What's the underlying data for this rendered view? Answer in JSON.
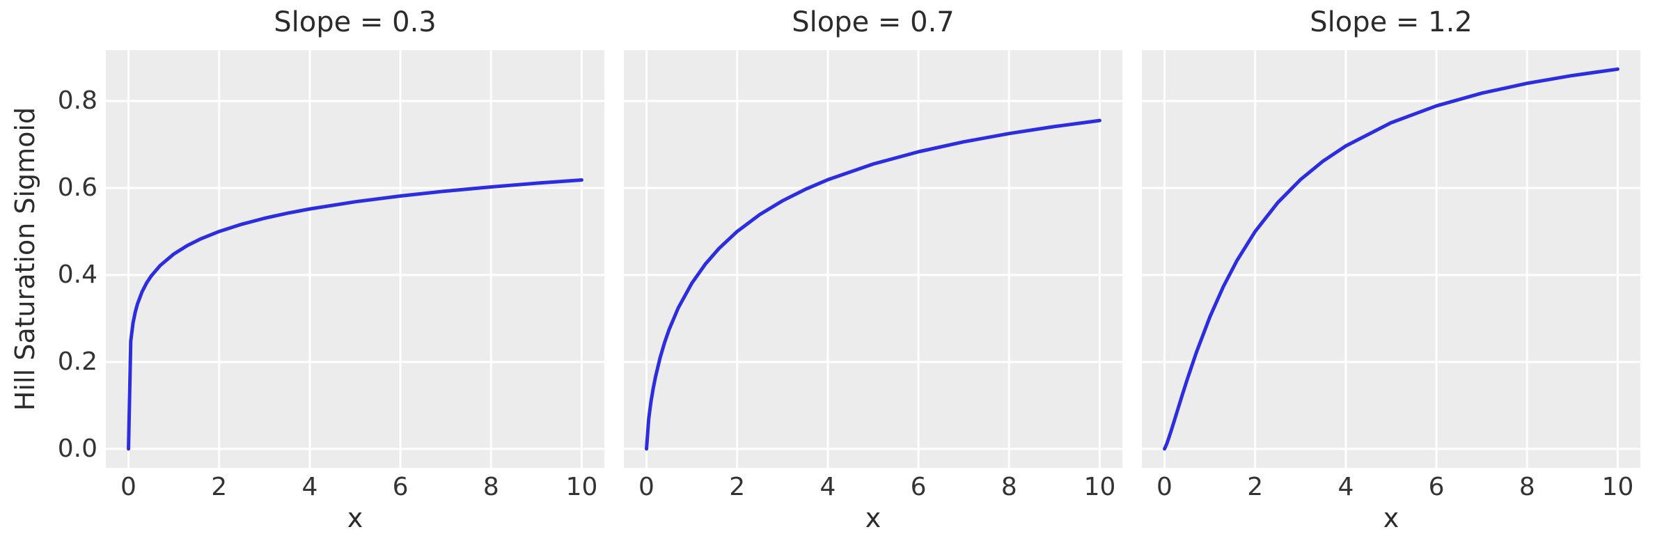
{
  "figure": {
    "ylabel": "Hill Saturation Sigmoid",
    "background": "#ffffff",
    "axes_background": "#ececec",
    "grid_color": "#ffffff",
    "line_color": "#2c2ce0",
    "title_color": "#2b2b2b",
    "tick_color": "#333333"
  },
  "chart_data": [
    {
      "type": "line",
      "title": "Slope = 0.3",
      "slope": 0.3,
      "xlabel": "x",
      "ylabel": "Hill Saturation Sigmoid",
      "grid": true,
      "legend": "none",
      "xlim": [
        -0.5,
        10.5
      ],
      "ylim": [
        -0.0437,
        0.9171
      ],
      "xticks": [
        "0",
        "2",
        "4",
        "6",
        "8",
        "10"
      ],
      "yticks": [
        "0.0",
        "0.2",
        "0.4",
        "0.6",
        "0.8"
      ],
      "x": [
        0,
        0.05,
        0.1,
        0.15,
        0.2,
        0.3,
        0.4,
        0.5,
        0.7,
        1,
        1.3,
        1.6,
        2,
        2.5,
        3,
        3.5,
        4,
        5,
        6,
        7,
        8,
        9,
        10
      ],
      "y": [
        0,
        0.2485,
        0.2893,
        0.3149,
        0.3338,
        0.3614,
        0.3816,
        0.3975,
        0.4219,
        0.4482,
        0.4678,
        0.4833,
        0.5,
        0.5167,
        0.5304,
        0.5419,
        0.5518,
        0.5683,
        0.5816,
        0.5929,
        0.6025,
        0.611,
        0.6184
      ]
    },
    {
      "type": "line",
      "title": "Slope = 0.7",
      "slope": 0.7,
      "xlabel": "x",
      "ylabel": "Hill Saturation Sigmoid",
      "grid": true,
      "legend": "none",
      "xlim": [
        -0.5,
        10.5
      ],
      "ylim": [
        -0.0437,
        0.9171
      ],
      "xticks": [
        "0",
        "2",
        "4",
        "6",
        "8",
        "10"
      ],
      "yticks": [
        "0.0",
        "0.2",
        "0.4",
        "0.6",
        "0.8"
      ],
      "x": [
        0,
        0.05,
        0.1,
        0.15,
        0.2,
        0.3,
        0.4,
        0.5,
        0.7,
        1,
        1.3,
        1.6,
        2,
        2.5,
        3,
        3.5,
        4,
        5,
        6,
        7,
        8,
        9,
        10
      ],
      "y": [
        0,
        0.0703,
        0.1094,
        0.1402,
        0.1663,
        0.2095,
        0.2448,
        0.2748,
        0.3241,
        0.381,
        0.4252,
        0.461,
        0.5,
        0.539,
        0.5705,
        0.5967,
        0.619,
        0.6551,
        0.6833,
        0.7062,
        0.7252,
        0.7413,
        0.7552
      ]
    },
    {
      "type": "line",
      "title": "Slope = 1.2",
      "slope": 1.2,
      "xlabel": "x",
      "ylabel": "Hill Saturation Sigmoid",
      "grid": true,
      "legend": "none",
      "xlim": [
        -0.5,
        10.5
      ],
      "ylim": [
        -0.0437,
        0.9171
      ],
      "xticks": [
        "0",
        "2",
        "4",
        "6",
        "8",
        "10"
      ],
      "yticks": [
        "0.0",
        "0.2",
        "0.4",
        "0.6",
        "0.8"
      ],
      "x": [
        0,
        0.05,
        0.1,
        0.15,
        0.2,
        0.3,
        0.4,
        0.5,
        0.7,
        1,
        1.3,
        1.6,
        2,
        2.5,
        3,
        3.5,
        4,
        5,
        6,
        7,
        8,
        9,
        10
      ],
      "y": [
        0,
        0.0118,
        0.0267,
        0.0428,
        0.0593,
        0.0931,
        0.1266,
        0.1593,
        0.221,
        0.3033,
        0.3736,
        0.4334,
        0.5,
        0.5665,
        0.6193,
        0.6619,
        0.6967,
        0.7502,
        0.7889,
        0.8181,
        0.8407,
        0.8587,
        0.8734
      ]
    }
  ]
}
